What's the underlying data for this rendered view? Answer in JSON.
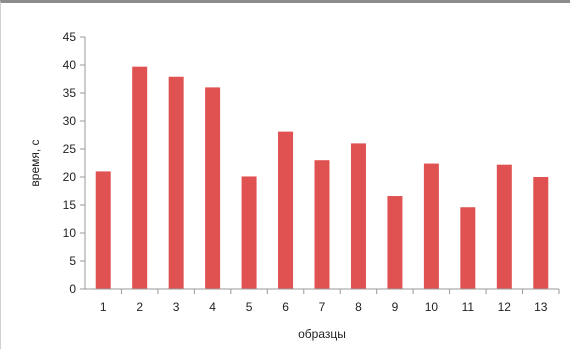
{
  "chart_data": {
    "type": "bar",
    "title": "",
    "xlabel": "образцы",
    "ylabel": "время, с",
    "categories": [
      "1",
      "2",
      "3",
      "4",
      "5",
      "6",
      "7",
      "8",
      "9",
      "10",
      "11",
      "12",
      "13"
    ],
    "values": [
      21,
      39.7,
      37.9,
      36,
      20.1,
      28.1,
      23,
      26,
      16.6,
      22.4,
      14.6,
      22.2,
      20
    ],
    "ylim": [
      0,
      45
    ],
    "yticks": [
      "0",
      "5",
      "10",
      "15",
      "20",
      "25",
      "30",
      "35",
      "40",
      "45"
    ],
    "grid": false,
    "legend": "none",
    "colors": {
      "bar": "#e05252",
      "axis": "#9a9a9a",
      "frame_top": "#8c8c8c"
    }
  }
}
